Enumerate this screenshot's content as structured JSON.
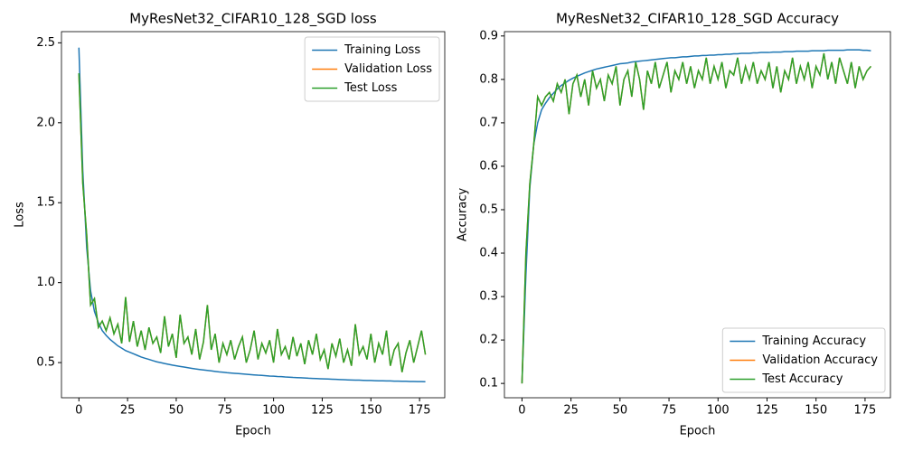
{
  "chart_data": [
    {
      "type": "line",
      "title": "MyResNet32_CIFAR10_128_SGD loss",
      "x_label": "Epoch",
      "y_label": "Loss",
      "legend": "upper right",
      "grid": false,
      "xlim": [
        -8.95,
        187.95
      ],
      "xticks": [
        0,
        25,
        50,
        75,
        100,
        125,
        150,
        175
      ],
      "ylim": [
        0.28,
        2.57
      ],
      "yticks": [
        0.5,
        {
          "value": 1,
          "label": "1.0"
        },
        1.5,
        {
          "value": 2,
          "label": "2.0"
        },
        2.5
      ],
      "x": [
        0,
        2,
        4,
        6,
        8,
        10,
        12,
        14,
        16,
        18,
        20,
        22,
        24,
        26,
        28,
        30,
        32,
        34,
        36,
        38,
        40,
        42,
        44,
        46,
        48,
        50,
        52,
        54,
        56,
        58,
        60,
        62,
        64,
        66,
        68,
        70,
        72,
        74,
        76,
        78,
        80,
        82,
        84,
        86,
        88,
        90,
        92,
        94,
        96,
        98,
        100,
        102,
        104,
        106,
        108,
        110,
        112,
        114,
        116,
        118,
        120,
        122,
        124,
        126,
        128,
        130,
        132,
        134,
        136,
        138,
        140,
        142,
        144,
        146,
        148,
        150,
        152,
        154,
        156,
        158,
        160,
        162,
        164,
        166,
        168,
        170,
        172,
        174,
        176,
        178
      ],
      "series": [
        {
          "name": "Training Loss",
          "color": "#1f77b4",
          "values": [
            2.47,
            1.7,
            1.22,
            0.95,
            0.82,
            0.75,
            0.7,
            0.67,
            0.645,
            0.625,
            0.605,
            0.59,
            0.575,
            0.565,
            0.555,
            0.545,
            0.535,
            0.527,
            0.52,
            0.512,
            0.505,
            0.5,
            0.494,
            0.489,
            0.484,
            0.48,
            0.476,
            0.472,
            0.468,
            0.464,
            0.46,
            0.457,
            0.454,
            0.451,
            0.448,
            0.445,
            0.442,
            0.44,
            0.437,
            0.435,
            0.433,
            0.431,
            0.429,
            0.427,
            0.425,
            0.423,
            0.421,
            0.42,
            0.418,
            0.416,
            0.415,
            0.413,
            0.412,
            0.41,
            0.409,
            0.407,
            0.406,
            0.405,
            0.404,
            0.402,
            0.401,
            0.4,
            0.399,
            0.398,
            0.397,
            0.396,
            0.395,
            0.394,
            0.393,
            0.392,
            0.391,
            0.39,
            0.39,
            0.389,
            0.388,
            0.388,
            0.387,
            0.386,
            0.386,
            0.385,
            0.385,
            0.384,
            0.384,
            0.383,
            0.383,
            0.382,
            0.382,
            0.381,
            0.381,
            0.38
          ]
        },
        {
          "name": "Validation Loss",
          "color": "#ff7f0e",
          "values": [
            2.31,
            1.62,
            1.3,
            0.86,
            0.9,
            0.72,
            0.76,
            0.7,
            0.78,
            0.68,
            0.74,
            0.62,
            0.91,
            0.63,
            0.76,
            0.6,
            0.7,
            0.58,
            0.72,
            0.62,
            0.66,
            0.56,
            0.79,
            0.6,
            0.68,
            0.53,
            0.8,
            0.62,
            0.66,
            0.55,
            0.71,
            0.52,
            0.63,
            0.86,
            0.58,
            0.68,
            0.5,
            0.62,
            0.55,
            0.64,
            0.52,
            0.6,
            0.66,
            0.5,
            0.58,
            0.7,
            0.52,
            0.62,
            0.56,
            0.64,
            0.5,
            0.71,
            0.55,
            0.6,
            0.52,
            0.66,
            0.54,
            0.62,
            0.49,
            0.64,
            0.55,
            0.68,
            0.52,
            0.58,
            0.46,
            0.62,
            0.54,
            0.65,
            0.5,
            0.58,
            0.48,
            0.74,
            0.55,
            0.6,
            0.52,
            0.68,
            0.5,
            0.62,
            0.55,
            0.7,
            0.48,
            0.58,
            0.62,
            0.44,
            0.56,
            0.64,
            0.5,
            0.6,
            0.7,
            0.55
          ]
        },
        {
          "name": "Test Loss",
          "color": "#2ca02c",
          "values": [
            2.31,
            1.62,
            1.3,
            0.86,
            0.9,
            0.72,
            0.76,
            0.7,
            0.78,
            0.68,
            0.74,
            0.62,
            0.91,
            0.63,
            0.76,
            0.6,
            0.7,
            0.58,
            0.72,
            0.62,
            0.66,
            0.56,
            0.79,
            0.6,
            0.68,
            0.53,
            0.8,
            0.62,
            0.66,
            0.55,
            0.71,
            0.52,
            0.63,
            0.86,
            0.58,
            0.68,
            0.5,
            0.62,
            0.55,
            0.64,
            0.52,
            0.6,
            0.66,
            0.5,
            0.58,
            0.7,
            0.52,
            0.62,
            0.56,
            0.64,
            0.5,
            0.71,
            0.55,
            0.6,
            0.52,
            0.66,
            0.54,
            0.62,
            0.49,
            0.64,
            0.55,
            0.68,
            0.52,
            0.58,
            0.46,
            0.62,
            0.54,
            0.65,
            0.5,
            0.58,
            0.48,
            0.74,
            0.55,
            0.6,
            0.52,
            0.68,
            0.5,
            0.62,
            0.55,
            0.7,
            0.48,
            0.58,
            0.62,
            0.44,
            0.56,
            0.64,
            0.5,
            0.6,
            0.7,
            0.55
          ]
        }
      ]
    },
    {
      "type": "line",
      "title": "MyResNet32_CIFAR10_128_SGD Accuracy",
      "x_label": "Epoch",
      "y_label": "Accuracy",
      "legend": "lower right",
      "grid": false,
      "xlim": [
        -8.95,
        187.95
      ],
      "xticks": [
        0,
        25,
        50,
        75,
        100,
        125,
        150,
        175
      ],
      "ylim": [
        0.067,
        0.91
      ],
      "yticks": [
        0.1,
        0.2,
        0.3,
        0.4,
        0.5,
        0.6,
        0.7,
        0.8,
        0.9
      ],
      "x": [
        0,
        2,
        4,
        6,
        8,
        10,
        12,
        14,
        16,
        18,
        20,
        22,
        24,
        26,
        28,
        30,
        32,
        34,
        36,
        38,
        40,
        42,
        44,
        46,
        48,
        50,
        52,
        54,
        56,
        58,
        60,
        62,
        64,
        66,
        68,
        70,
        72,
        74,
        76,
        78,
        80,
        82,
        84,
        86,
        88,
        90,
        92,
        94,
        96,
        98,
        100,
        102,
        104,
        106,
        108,
        110,
        112,
        114,
        116,
        118,
        120,
        122,
        124,
        126,
        128,
        130,
        132,
        134,
        136,
        138,
        140,
        142,
        144,
        146,
        148,
        150,
        152,
        154,
        156,
        158,
        160,
        162,
        164,
        166,
        168,
        170,
        172,
        174,
        176,
        178
      ],
      "series": [
        {
          "name": "Training Accuracy",
          "color": "#1f77b4",
          "values": [
            0.1,
            0.35,
            0.55,
            0.65,
            0.7,
            0.73,
            0.745,
            0.758,
            0.768,
            0.778,
            0.786,
            0.792,
            0.798,
            0.803,
            0.807,
            0.811,
            0.815,
            0.818,
            0.821,
            0.824,
            0.826,
            0.828,
            0.83,
            0.832,
            0.834,
            0.836,
            0.837,
            0.838,
            0.84,
            0.841,
            0.842,
            0.843,
            0.844,
            0.845,
            0.846,
            0.847,
            0.848,
            0.849,
            0.85,
            0.85,
            0.851,
            0.852,
            0.852,
            0.853,
            0.854,
            0.854,
            0.855,
            0.855,
            0.856,
            0.856,
            0.857,
            0.857,
            0.858,
            0.858,
            0.859,
            0.859,
            0.86,
            0.86,
            0.86,
            0.861,
            0.861,
            0.862,
            0.862,
            0.862,
            0.863,
            0.863,
            0.863,
            0.864,
            0.864,
            0.864,
            0.865,
            0.865,
            0.865,
            0.865,
            0.866,
            0.866,
            0.866,
            0.866,
            0.867,
            0.867,
            0.867,
            0.867,
            0.867,
            0.868,
            0.868,
            0.868,
            0.868,
            0.867,
            0.867,
            0.866
          ]
        },
        {
          "name": "Validation Accuracy",
          "color": "#ff7f0e",
          "values": [
            0.1,
            0.4,
            0.56,
            0.65,
            0.76,
            0.74,
            0.76,
            0.77,
            0.75,
            0.79,
            0.77,
            0.8,
            0.72,
            0.79,
            0.81,
            0.76,
            0.8,
            0.74,
            0.82,
            0.78,
            0.8,
            0.75,
            0.81,
            0.79,
            0.83,
            0.74,
            0.8,
            0.82,
            0.76,
            0.84,
            0.8,
            0.73,
            0.82,
            0.79,
            0.84,
            0.78,
            0.81,
            0.84,
            0.77,
            0.82,
            0.8,
            0.84,
            0.79,
            0.83,
            0.78,
            0.82,
            0.8,
            0.85,
            0.79,
            0.83,
            0.8,
            0.84,
            0.78,
            0.82,
            0.81,
            0.85,
            0.79,
            0.83,
            0.8,
            0.84,
            0.79,
            0.82,
            0.8,
            0.84,
            0.78,
            0.83,
            0.77,
            0.82,
            0.8,
            0.85,
            0.79,
            0.83,
            0.8,
            0.84,
            0.78,
            0.83,
            0.81,
            0.86,
            0.8,
            0.84,
            0.79,
            0.85,
            0.82,
            0.79,
            0.84,
            0.78,
            0.83,
            0.8,
            0.82,
            0.83
          ]
        },
        {
          "name": "Test Accuracy",
          "color": "#2ca02c",
          "values": [
            0.1,
            0.4,
            0.56,
            0.65,
            0.76,
            0.74,
            0.76,
            0.77,
            0.75,
            0.79,
            0.77,
            0.8,
            0.72,
            0.79,
            0.81,
            0.76,
            0.8,
            0.74,
            0.82,
            0.78,
            0.8,
            0.75,
            0.81,
            0.79,
            0.83,
            0.74,
            0.8,
            0.82,
            0.76,
            0.84,
            0.8,
            0.73,
            0.82,
            0.79,
            0.84,
            0.78,
            0.81,
            0.84,
            0.77,
            0.82,
            0.8,
            0.84,
            0.79,
            0.83,
            0.78,
            0.82,
            0.8,
            0.85,
            0.79,
            0.83,
            0.8,
            0.84,
            0.78,
            0.82,
            0.81,
            0.85,
            0.79,
            0.83,
            0.8,
            0.84,
            0.79,
            0.82,
            0.8,
            0.84,
            0.78,
            0.83,
            0.77,
            0.82,
            0.8,
            0.85,
            0.79,
            0.83,
            0.8,
            0.84,
            0.78,
            0.83,
            0.81,
            0.86,
            0.8,
            0.84,
            0.79,
            0.85,
            0.82,
            0.79,
            0.84,
            0.78,
            0.83,
            0.8,
            0.82,
            0.83
          ]
        }
      ]
    }
  ]
}
